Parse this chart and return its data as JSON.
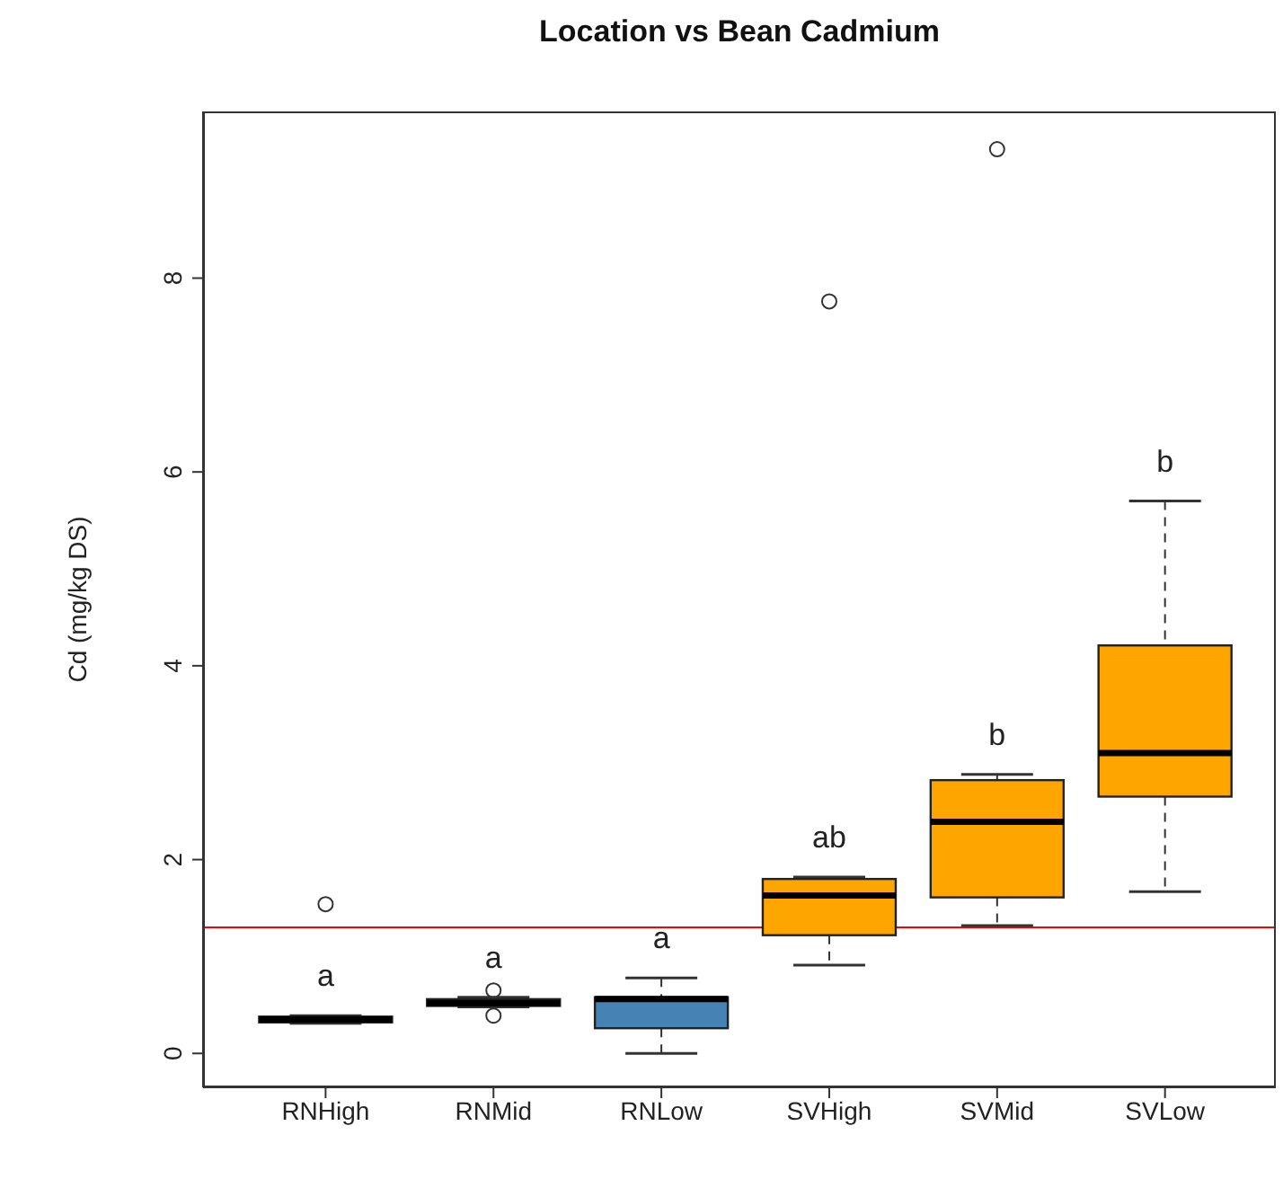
{
  "chart_data": {
    "type": "box",
    "title": "Location vs Bean Cadmium",
    "ylabel": "Cd (mg/kg DS)",
    "categories": [
      "RNHigh",
      "RNMid",
      "RNLow",
      "SVHigh",
      "SVMid",
      "SVLow"
    ],
    "colors": [
      "#4682b4",
      "#4682b4",
      "#4682b4",
      "#ffa500",
      "#ffa500",
      "#ffa500"
    ],
    "boxes": [
      {
        "low": 0.31,
        "q1": 0.32,
        "median": 0.35,
        "q3": 0.38,
        "high": 0.39,
        "outliers": [
          1.54
        ]
      },
      {
        "low": 0.48,
        "q1": 0.49,
        "median": 0.52,
        "q3": 0.56,
        "high": 0.58,
        "outliers": [
          0.65,
          0.39
        ]
      },
      {
        "low": 0.0,
        "q1": 0.26,
        "median": 0.56,
        "q3": 0.58,
        "high": 0.78
      },
      {
        "low": 0.91,
        "q1": 1.22,
        "median": 1.63,
        "q3": 1.8,
        "high": 1.82,
        "outliers": [
          7.76
        ]
      },
      {
        "low": 1.32,
        "q1": 1.61,
        "median": 2.39,
        "q3": 2.82,
        "high": 2.88,
        "outliers": [
          9.33
        ]
      },
      {
        "low": 1.67,
        "q1": 2.65,
        "median": 3.1,
        "q3": 4.21,
        "high": 5.7
      }
    ],
    "ylim": [
      -0.35,
      9.72
    ],
    "yticks": [
      0,
      2,
      4,
      6,
      8
    ],
    "ref_lines": [
      {
        "axis": "y",
        "value": 1.3,
        "color": "#ff0000"
      }
    ],
    "annotations": [
      "a",
      "a",
      "a",
      "ab",
      "b",
      "b"
    ]
  }
}
